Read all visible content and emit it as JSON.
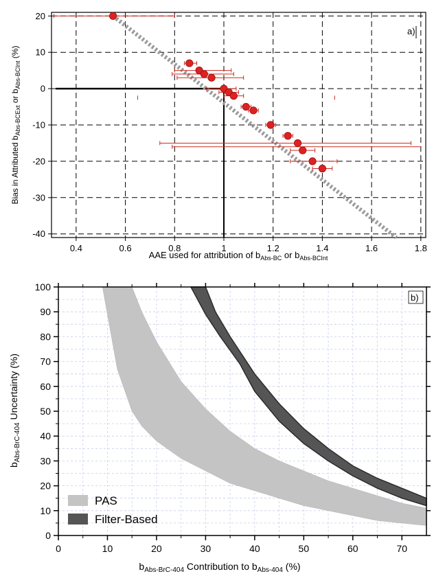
{
  "chart_data": [
    {
      "id": "a",
      "type": "scatter",
      "panel_label": "a)",
      "xlabel": {
        "main": "AAE used for attribution of b",
        "sub1": "Abs-BC",
        "mid": " or b",
        "sub2": "Abs-BCInt"
      },
      "ylabel": {
        "main": "Bias in Attributed b",
        "sub1": "Abs-BCExt",
        "mid": " or b",
        "sub2": "Abs-BCInt",
        "tail": " (%)"
      },
      "xlim": [
        0.3,
        1.82
      ],
      "ylim": [
        -41,
        21
      ],
      "xticks": [
        0.4,
        0.6,
        0.8,
        1.0,
        1.2,
        1.4,
        1.6,
        1.8
      ],
      "xtick_labels": [
        "0.4",
        "0.6",
        "0.8",
        "1",
        "1.2",
        "1.4",
        "1.6",
        "1.8"
      ],
      "yticks": [
        20,
        10,
        0,
        -10,
        -20,
        -30,
        -40
      ],
      "ytick_labels": [
        "20",
        "10",
        "0",
        "-10",
        "-20",
        "-30",
        "-40"
      ],
      "grid": true,
      "colors": {
        "points": "#dd2222",
        "errorbars": "#cc2a1e",
        "trend": "#9a9a9a",
        "reference": "#000000"
      },
      "trend_line": {
        "x": [
          0.55,
          1.7
        ],
        "y": [
          20,
          -41
        ]
      },
      "reference_lines": {
        "x": 1.0,
        "y": 0
      },
      "points": [
        {
          "x": 0.55,
          "y": 20,
          "xerr": [
            0.31,
            0.8
          ]
        },
        {
          "x": 0.86,
          "y": 7,
          "xerr": [
            0.84,
            0.89
          ]
        },
        {
          "x": 0.9,
          "y": 5,
          "xerr": [
            0.8,
            1.03
          ]
        },
        {
          "x": 0.92,
          "y": 4,
          "xerr": [
            0.79,
            1.04
          ]
        },
        {
          "x": 0.95,
          "y": 3,
          "xerr": [
            0.81,
            1.08
          ]
        },
        {
          "x": 1.0,
          "y": 0,
          "xerr": [
            0.93,
            1.05
          ]
        },
        {
          "x": 1.02,
          "y": -1,
          "xerr": [
            0.98,
            1.06
          ]
        },
        {
          "x": 1.04,
          "y": -2,
          "xerr": [
            1.0,
            1.08
          ]
        },
        {
          "x": 1.09,
          "y": -5,
          "xerr": [
            1.07,
            1.11
          ]
        },
        {
          "x": 1.12,
          "y": -6,
          "xerr": [
            1.1,
            1.14
          ]
        },
        {
          "x": 1.19,
          "y": -10,
          "xerr": [
            1.17,
            1.21
          ]
        },
        {
          "x": 1.26,
          "y": -13,
          "xerr": [
            1.24,
            1.28
          ]
        },
        {
          "x": 1.3,
          "y": -15,
          "xerr": [
            0.74,
            1.76
          ]
        },
        {
          "x": 1.32,
          "y": -17,
          "xerr": [
            1.27,
            1.37
          ]
        },
        {
          "x": 1.36,
          "y": -20,
          "xerr": [
            1.27,
            1.46
          ]
        },
        {
          "x": 1.4,
          "y": -22,
          "xerr": [
            1.36,
            1.44
          ]
        }
      ],
      "wide_errorbar": {
        "y": -16,
        "x": [
          0.79,
          1.8
        ]
      },
      "stray_marks": [
        {
          "x": 0.65,
          "y": -2.5
        },
        {
          "x": 1.45,
          "y": -2.5
        }
      ]
    },
    {
      "id": "b",
      "type": "area",
      "panel_label": "b)",
      "xlabel": {
        "sub_pre": "b",
        "sub1": "Abs-BrC-404",
        "mid": " Contribution to b",
        "sub2": "Abs-404",
        "tail": " (%)"
      },
      "ylabel": {
        "main": "b",
        "sub1": "Abs-BrC-404",
        "tail": " Uncertainty (%)"
      },
      "xlim": [
        0,
        75
      ],
      "ylim": [
        0,
        100
      ],
      "xticks": [
        0,
        10,
        20,
        30,
        40,
        50,
        60,
        70
      ],
      "yticks": [
        0,
        10,
        20,
        30,
        40,
        50,
        60,
        70,
        80,
        90,
        100
      ],
      "grid": true,
      "series": [
        {
          "name": "PAS",
          "color": "#c4c4c4",
          "upper": [
            [
              15,
              100
            ],
            [
              17,
              90
            ],
            [
              20,
              78
            ],
            [
              25,
              62
            ],
            [
              30,
              51
            ],
            [
              35,
              42
            ],
            [
              40,
              35
            ],
            [
              45,
              30
            ],
            [
              50,
              26
            ],
            [
              55,
              22
            ],
            [
              60,
              19
            ],
            [
              65,
              16
            ],
            [
              70,
              13
            ],
            [
              75,
              11
            ]
          ],
          "lower": [
            [
              9,
              100
            ],
            [
              12,
              67
            ],
            [
              15,
              50
            ],
            [
              17,
              44
            ],
            [
              20,
              38
            ],
            [
              25,
              31
            ],
            [
              30,
              26
            ],
            [
              35,
              21
            ],
            [
              40,
              18
            ],
            [
              45,
              15
            ],
            [
              50,
              12
            ],
            [
              55,
              10
            ],
            [
              60,
              8
            ],
            [
              65,
              6
            ],
            [
              70,
              5
            ],
            [
              75,
              4
            ]
          ]
        },
        {
          "name": "Filter-Based",
          "color": "#555555",
          "upper": [
            [
              30,
              100
            ],
            [
              32,
              90
            ],
            [
              35,
              80
            ],
            [
              40,
              65
            ],
            [
              45,
              53
            ],
            [
              50,
              43
            ],
            [
              55,
              35
            ],
            [
              60,
              28
            ],
            [
              65,
              23
            ],
            [
              70,
              19
            ],
            [
              75,
              15
            ]
          ],
          "lower": [
            [
              27,
              100
            ],
            [
              30,
              89
            ],
            [
              33,
              80
            ],
            [
              37,
              69
            ],
            [
              40,
              58
            ],
            [
              45,
              46
            ],
            [
              50,
              37
            ],
            [
              55,
              30
            ],
            [
              60,
              24
            ],
            [
              65,
              19
            ],
            [
              70,
              15
            ],
            [
              75,
              12
            ]
          ]
        }
      ],
      "legend_position": "bottom-left"
    }
  ]
}
